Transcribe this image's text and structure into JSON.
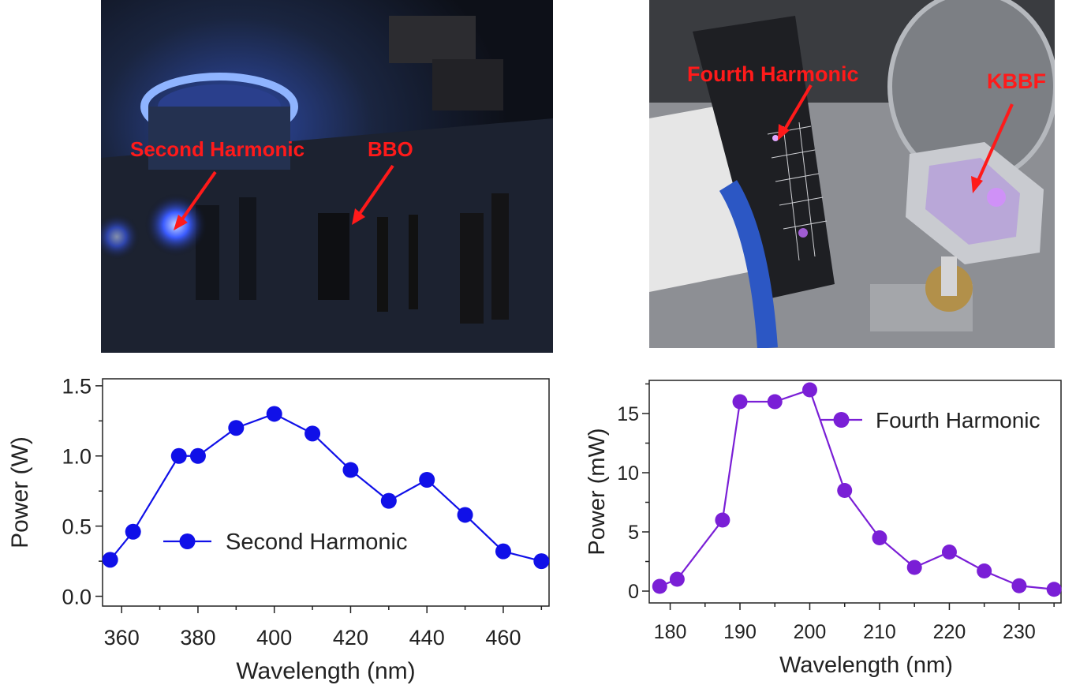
{
  "photos": {
    "left": {
      "labels": [
        "Second Harmonic",
        "BBO"
      ]
    },
    "right": {
      "labels": [
        "Fourth Harmonic",
        "KBBF"
      ]
    }
  },
  "colors": {
    "annotation": "#ff1a1a",
    "second_harmonic": "#1010e8",
    "fourth_harmonic": "#7a1fd6"
  },
  "chart_data": [
    {
      "type": "line",
      "title": "",
      "xlabel": "Wavelength (nm)",
      "ylabel": "Power (W)",
      "xlim": [
        355,
        472
      ],
      "ylim": [
        -0.07,
        1.55
      ],
      "xticks": [
        360,
        380,
        400,
        420,
        440,
        460
      ],
      "yticks": [
        "0.0",
        "0.5",
        "1.0",
        "1.5"
      ],
      "legend": "center",
      "series": [
        {
          "name": "Second Harmonic",
          "color": "#1010e8",
          "x": [
            357,
            363,
            375,
            380,
            390,
            400,
            410,
            420,
            430,
            440,
            450,
            460,
            470
          ],
          "y": [
            0.26,
            0.46,
            1.0,
            1.0,
            1.2,
            1.3,
            1.16,
            0.9,
            0.68,
            0.83,
            0.58,
            0.32,
            0.25
          ]
        }
      ]
    },
    {
      "type": "line",
      "title": "",
      "xlabel": "Wavelength (nm)",
      "ylabel": "Power (mW)",
      "xlim": [
        177,
        236
      ],
      "ylim": [
        -1,
        17.8
      ],
      "xticks": [
        180,
        190,
        200,
        210,
        220,
        230
      ],
      "yticks": [
        "0",
        "5",
        "10",
        "15"
      ],
      "legend": "top-right",
      "series": [
        {
          "name": "Fourth Harmonic",
          "color": "#7a1fd6",
          "x": [
            178.5,
            181,
            187.5,
            190,
            195,
            200,
            205,
            210,
            215,
            220,
            225,
            230,
            235
          ],
          "y": [
            0.4,
            1.0,
            6.0,
            16.0,
            16.0,
            17.0,
            8.5,
            4.5,
            2.0,
            3.3,
            1.7,
            0.45,
            0.15
          ]
        }
      ]
    }
  ]
}
